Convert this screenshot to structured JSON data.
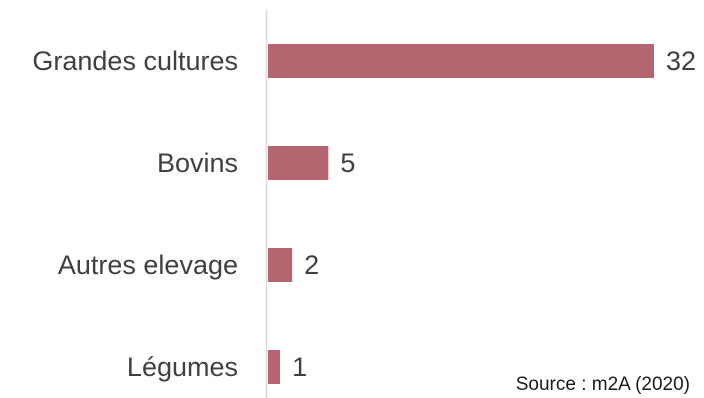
{
  "chart_data": {
    "type": "bar",
    "orientation": "horizontal",
    "categories": [
      "Grandes cultures",
      "Bovins",
      "Autres elevage",
      "Légumes"
    ],
    "values": [
      32,
      5,
      2,
      1
    ],
    "title": "",
    "xlabel": "",
    "ylabel": "",
    "xlim": [
      0,
      32
    ],
    "grid": false,
    "data_labels": true,
    "bar_color": "#b5656f",
    "axis_color": "#d9d9d9"
  },
  "source_note": "Source : m2A (2020)"
}
